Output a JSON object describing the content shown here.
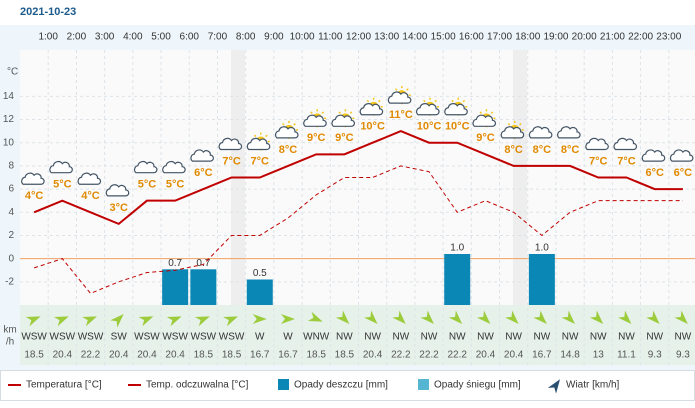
{
  "chart_data": {
    "type": "line",
    "title": "2021-10-23",
    "y_label": "°C",
    "xlim": [
      0,
      24
    ],
    "xticks": [
      {
        "value": 1,
        "label": "1:00"
      },
      {
        "value": 2,
        "label": "2:00"
      },
      {
        "value": 3,
        "label": "3:00"
      },
      {
        "value": 4,
        "label": "4:00"
      },
      {
        "value": 5,
        "label": "5:00"
      },
      {
        "value": 6,
        "label": "6:00"
      },
      {
        "value": 7,
        "label": "7:00"
      },
      {
        "value": 8,
        "label": "8:00"
      },
      {
        "value": 9,
        "label": "9:00"
      },
      {
        "value": 10,
        "label": "10:00"
      },
      {
        "value": 11,
        "label": "11:00"
      },
      {
        "value": 12,
        "label": "12:00"
      },
      {
        "value": 13,
        "label": "13:00"
      },
      {
        "value": 14,
        "label": "14:00"
      },
      {
        "value": 15,
        "label": "15:00"
      },
      {
        "value": 16,
        "label": "16:00"
      },
      {
        "value": 17,
        "label": "17:00"
      },
      {
        "value": 18,
        "label": "18:00"
      },
      {
        "value": 19,
        "label": "19:00"
      },
      {
        "value": 20,
        "label": "20:00"
      },
      {
        "value": 21,
        "label": "21:00"
      },
      {
        "value": 22,
        "label": "22:00"
      },
      {
        "value": 23,
        "label": "23:00"
      }
    ],
    "x": [
      0.5,
      1.5,
      2.5,
      3.5,
      4.5,
      5.5,
      6.5,
      7.5,
      8.5,
      9.5,
      10.5,
      11.5,
      12.5,
      13.5,
      14.5,
      15.5,
      16.5,
      17.5,
      18.5,
      19.5,
      20.5,
      21.5,
      22.5,
      23.5
    ],
    "ylim": [
      -4,
      18
    ],
    "yticks": [
      -2,
      0,
      2,
      4,
      6,
      8,
      10,
      12,
      14
    ],
    "y2lim": [
      0,
      5
    ],
    "grid": true,
    "series": [
      {
        "name": "Temperatura [°C]",
        "color": "#c00000",
        "values": [
          4,
          5,
          4,
          3,
          5,
          5,
          6,
          7,
          7,
          8,
          9,
          9,
          10,
          11,
          10,
          10,
          9,
          8,
          8,
          8,
          7,
          7,
          6,
          6
        ],
        "value_labels": [
          "4°C",
          "5°C",
          "4°C",
          "3°C",
          "5°C",
          "5°C",
          "6°C",
          "7°C",
          "7°C",
          "8°C",
          "9°C",
          "9°C",
          "10°C",
          "11°C",
          "10°C",
          "10°C",
          "9°C",
          "8°C",
          "8°C",
          "8°C",
          "7°C",
          "7°C",
          "6°C",
          "6°C"
        ]
      },
      {
        "name": "Temp. odczuwalna [°C]",
        "color": "#c00000",
        "dashed": true,
        "values": [
          -0.8,
          0,
          -3,
          -2,
          -1.2,
          -1,
          -0.5,
          2,
          2,
          3.5,
          5.5,
          7,
          7,
          8,
          7.5,
          4,
          5,
          4,
          2,
          4,
          5,
          5,
          5,
          5
        ]
      },
      {
        "name": "Opady deszczu [mm]",
        "color": "#0a87b5",
        "type": "bar",
        "axis": "y2",
        "values": [
          null,
          null,
          null,
          null,
          null,
          0.7,
          0.7,
          null,
          0.5,
          null,
          null,
          null,
          null,
          null,
          null,
          1.0,
          null,
          null,
          1.0,
          null,
          null,
          null,
          null,
          null
        ],
        "value_labels": [
          null,
          null,
          null,
          null,
          null,
          "0.7",
          "0.7",
          null,
          "0.5",
          null,
          null,
          null,
          null,
          null,
          null,
          "1.0",
          null,
          null,
          "1.0",
          null,
          null,
          null,
          null,
          null
        ]
      },
      {
        "name": "Opady śniegu [mm]",
        "color": "#55b6d4",
        "type": "bar",
        "axis": "y2",
        "values": [
          null,
          null,
          null,
          null,
          null,
          null,
          null,
          null,
          null,
          null,
          null,
          null,
          null,
          null,
          null,
          null,
          null,
          null,
          null,
          null,
          null,
          null,
          null,
          null
        ]
      }
    ],
    "wind": {
      "name": "Wiatr [km/h]",
      "unit_lines": [
        "km",
        "/h"
      ],
      "color": "#2a4f6e",
      "directions": [
        "WSW",
        "WSW",
        "WSW",
        "SW",
        "WSW",
        "WSW",
        "WSW",
        "WSW",
        "W",
        "W",
        "WNW",
        "NW",
        "NW",
        "NW",
        "NW",
        "NW",
        "NW",
        "NW",
        "NW",
        "NW",
        "NW",
        "NW",
        "NW",
        "NW"
      ],
      "values": [
        18.5,
        20.4,
        22.2,
        20.4,
        20.4,
        20.4,
        18.5,
        18.5,
        16.7,
        16.7,
        18.5,
        18.5,
        20.4,
        22.2,
        22.2,
        22.2,
        20.4,
        20.4,
        16.7,
        14.8,
        13,
        11.1,
        9.3,
        9.3
      ]
    }
  }
}
